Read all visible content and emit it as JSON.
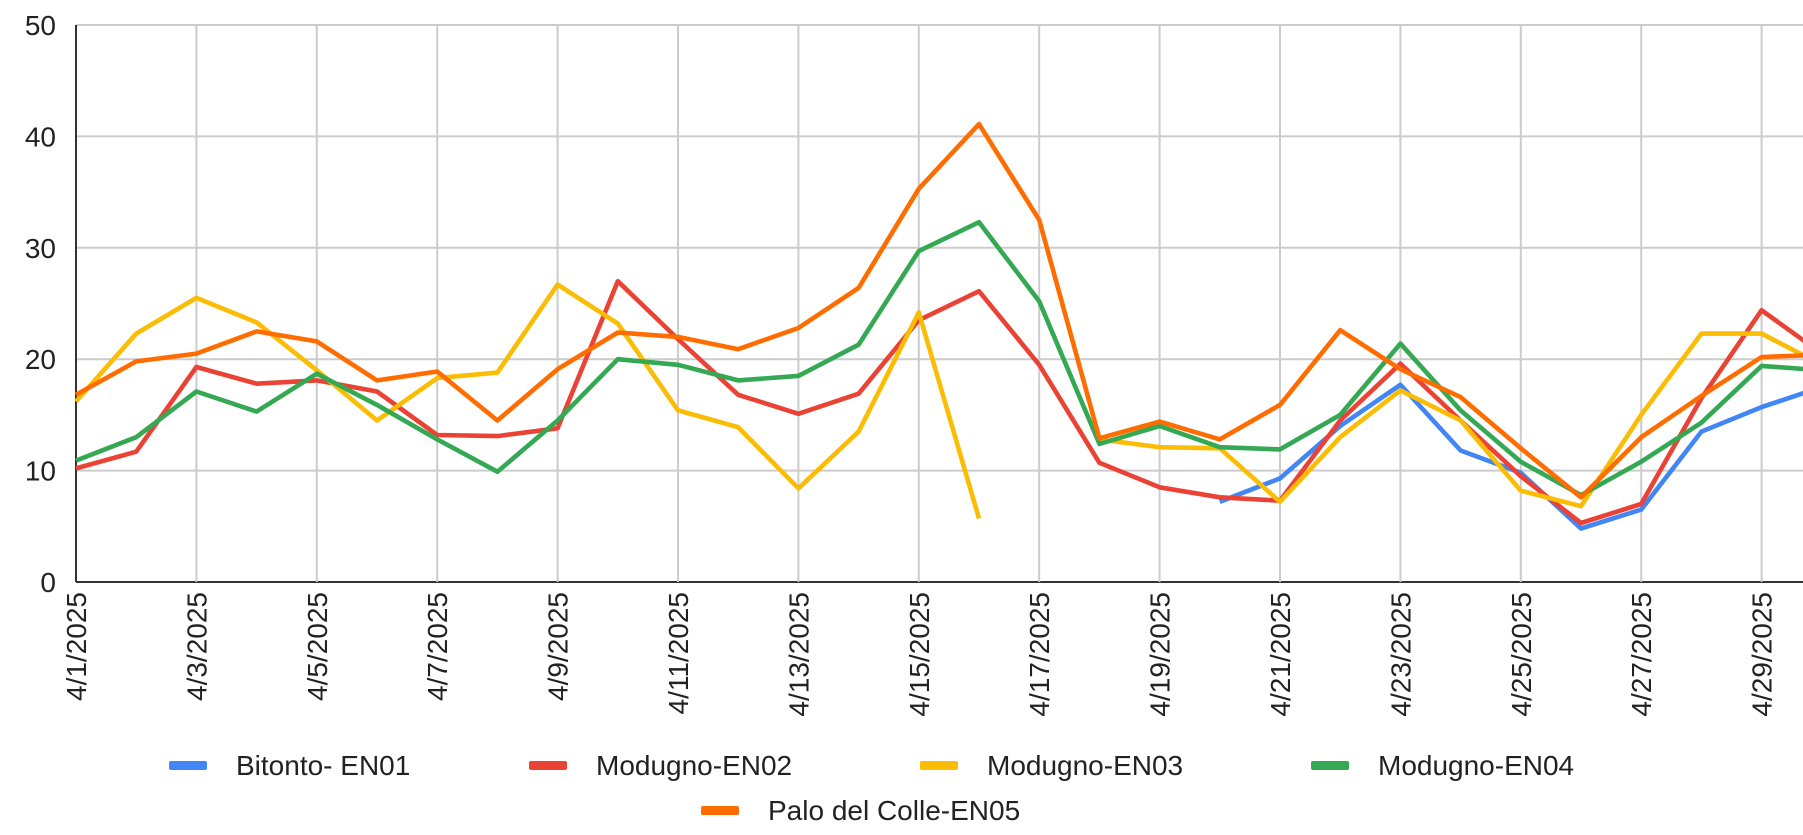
{
  "chart_data": {
    "type": "line",
    "categories": [
      "4/1/2025",
      null,
      "4/3/2025",
      null,
      "4/5/2025",
      null,
      "4/7/2025",
      null,
      "4/9/2025",
      null,
      "4/11/2025",
      null,
      "4/13/2025",
      null,
      "4/15/2025",
      null,
      "4/17/2025",
      null,
      "4/19/2025",
      null,
      "4/21/2025",
      null,
      "4/23/2025",
      null,
      "4/25/2025",
      null,
      "4/27/2025",
      null,
      "4/29/2025",
      null
    ],
    "series": [
      {
        "name": "Bitonto- EN01",
        "color": "#4285f4",
        "values": [
          null,
          null,
          null,
          null,
          null,
          null,
          null,
          null,
          null,
          null,
          null,
          null,
          null,
          null,
          null,
          null,
          null,
          null,
          null,
          7.2,
          9.3,
          14,
          17.7,
          11.8,
          9.8,
          4.8,
          6.5,
          13.5,
          15.7,
          17.5
        ]
      },
      {
        "name": "Modugno-EN02",
        "color": "#ea4335",
        "values": [
          10.2,
          11.7,
          19.3,
          17.8,
          18.1,
          17.1,
          13.2,
          13.1,
          13.8,
          27.0,
          21.8,
          16.8,
          15.1,
          16.9,
          23.5,
          26.1,
          19.5,
          10.7,
          8.5,
          7.6,
          7.3,
          14.5,
          19.6,
          14.5,
          9.5,
          5.3,
          7.0,
          16.5,
          24.4,
          20.5
        ]
      },
      {
        "name": "Modugno-EN03",
        "color": "#fbbc04",
        "values": [
          16.2,
          22.3,
          25.5,
          23.3,
          19.0,
          14.5,
          18.3,
          18.8,
          26.7,
          23.2,
          15.4,
          13.9,
          8.4,
          13.5,
          24.2,
          5.7,
          null,
          12.8,
          12.1,
          12.0,
          7.2,
          13.0,
          17.2,
          14.5,
          8.2,
          6.8,
          15.0,
          22.3,
          22.3,
          19.5
        ]
      },
      {
        "name": "Modugno-EN04",
        "color": "#34a853",
        "values": [
          10.9,
          13.0,
          17.1,
          15.3,
          18.7,
          15.9,
          12.8,
          9.9,
          14.5,
          20.0,
          19.5,
          18.1,
          18.5,
          21.3,
          29.7,
          32.3,
          25.2,
          12.4,
          14.0,
          12.1,
          11.9,
          15.0,
          21.4,
          15.4,
          10.8,
          7.8,
          10.8,
          14.3,
          19.4,
          19.0
        ]
      },
      {
        "name": "Palo del Colle-EN05",
        "color": "#ff6d01",
        "values": [
          16.8,
          19.8,
          20.5,
          22.5,
          21.6,
          18.1,
          18.9,
          14.5,
          19.1,
          22.4,
          22.0,
          20.9,
          22.8,
          26.4,
          35.3,
          41.1,
          32.5,
          12.9,
          14.4,
          12.8,
          15.9,
          22.6,
          19.1,
          16.6,
          12.0,
          7.6,
          13.0,
          16.7,
          20.2,
          20.4
        ]
      }
    ],
    "ylim": [
      0,
      50
    ],
    "yticks": [
      0,
      10,
      20,
      30,
      40,
      50
    ],
    "grid": true,
    "legend": "bottom"
  }
}
